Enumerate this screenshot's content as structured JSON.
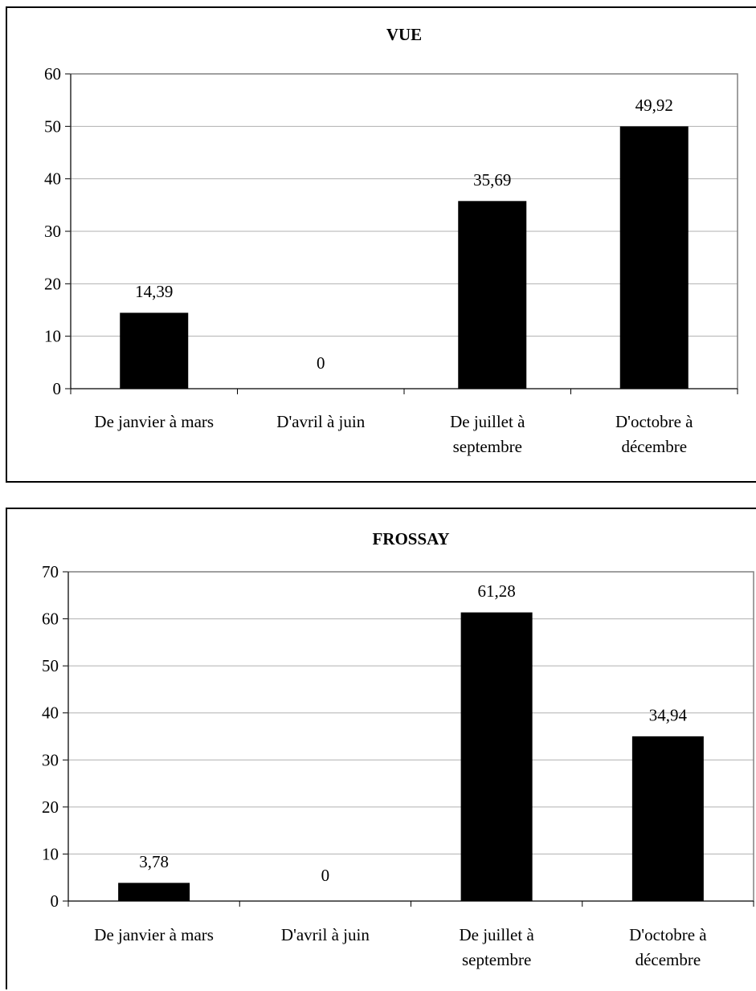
{
  "chart_data": [
    {
      "type": "bar",
      "title": "VUE",
      "xlabel": "",
      "ylabel": "",
      "categories": [
        [
          "De janvier à mars"
        ],
        [
          "D'avril à juin"
        ],
        [
          "De juillet à",
          "septembre"
        ],
        [
          "D'octobre à",
          "décembre"
        ]
      ],
      "values": [
        14.39,
        0,
        35.69,
        49.92
      ],
      "value_labels": [
        "14,39",
        "0",
        "35,69",
        "49,92"
      ],
      "ylim": [
        0,
        60
      ],
      "yticks": [
        0,
        10,
        20,
        30,
        40,
        50,
        60
      ],
      "grid": true,
      "bar_color": "#000000"
    },
    {
      "type": "bar",
      "title": "FROSSAY",
      "xlabel": "",
      "ylabel": "",
      "categories": [
        [
          "De janvier à mars"
        ],
        [
          "D'avril à juin"
        ],
        [
          "De juillet à",
          "septembre"
        ],
        [
          "D'octobre à",
          "décembre"
        ]
      ],
      "values": [
        3.78,
        0,
        61.28,
        34.94
      ],
      "value_labels": [
        "3,78",
        "0",
        "61,28",
        "34,94"
      ],
      "ylim": [
        0,
        70
      ],
      "yticks": [
        0,
        10,
        20,
        30,
        40,
        50,
        60,
        70
      ],
      "grid": true,
      "bar_color": "#000000"
    }
  ]
}
